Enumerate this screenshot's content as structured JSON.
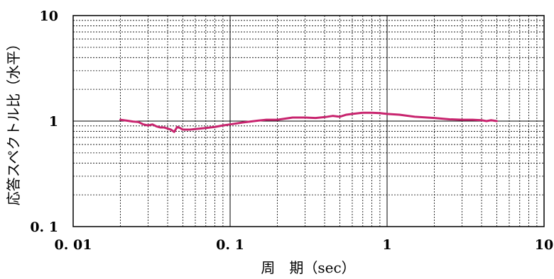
{
  "chart_data": {
    "type": "line",
    "xscale": "log",
    "yscale": "log",
    "xlim": [
      0.01,
      10
    ],
    "ylim": [
      0.1,
      10
    ],
    "xlabel": "周　期（sec）",
    "ylabel": "応答スペクトル比（水平）",
    "xticks": [
      {
        "value": 0.01,
        "label": "0. 01"
      },
      {
        "value": 0.1,
        "label": "0. 1"
      },
      {
        "value": 1,
        "label": "1"
      },
      {
        "value": 10,
        "label": "10"
      }
    ],
    "yticks": [
      {
        "value": 10,
        "label": "10"
      },
      {
        "value": 1,
        "label": "1"
      },
      {
        "value": 0.1,
        "label": "0. 1"
      }
    ],
    "grid": true,
    "legend": "none",
    "series": [
      {
        "color": "#c8246e",
        "x": [
          0.02,
          0.022,
          0.024,
          0.026,
          0.028,
          0.03,
          0.032,
          0.034,
          0.036,
          0.038,
          0.04,
          0.042,
          0.044,
          0.046,
          0.048,
          0.05,
          0.055,
          0.06,
          0.07,
          0.08,
          0.09,
          0.1,
          0.12,
          0.15,
          0.17,
          0.2,
          0.25,
          0.3,
          0.35,
          0.4,
          0.45,
          0.5,
          0.55,
          0.6,
          0.7,
          0.8,
          0.9,
          1.0,
          1.2,
          1.5,
          2.0,
          2.5,
          3.0,
          3.5,
          4.0,
          4.3,
          4.6,
          5.0
        ],
        "y": [
          1.03,
          1.01,
          0.99,
          0.98,
          0.93,
          0.91,
          0.93,
          0.89,
          0.87,
          0.87,
          0.85,
          0.83,
          0.79,
          0.88,
          0.86,
          0.83,
          0.83,
          0.84,
          0.86,
          0.88,
          0.91,
          0.93,
          0.97,
          1.01,
          1.03,
          1.03,
          1.08,
          1.08,
          1.07,
          1.09,
          1.12,
          1.1,
          1.15,
          1.17,
          1.2,
          1.2,
          1.19,
          1.17,
          1.15,
          1.1,
          1.07,
          1.04,
          1.03,
          1.03,
          1.02,
          1.0,
          1.02,
          1.0
        ]
      }
    ]
  }
}
